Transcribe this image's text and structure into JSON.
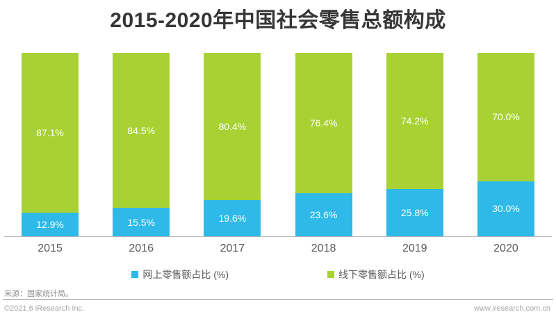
{
  "title": "2015-2020年中国社会零售总额构成",
  "chart_data": {
    "type": "bar",
    "stacked": true,
    "categories": [
      "2015",
      "2016",
      "2017",
      "2018",
      "2019",
      "2020"
    ],
    "series": [
      {
        "name": "网上零售额占比 (%)",
        "position": "bottom",
        "color": "#2eb9e8",
        "values": [
          12.9,
          15.5,
          19.6,
          23.6,
          25.8,
          30.0
        ],
        "labels": [
          "12.9%",
          "15.5%",
          "19.6%",
          "23.6%",
          "25.8%",
          "30.0%"
        ]
      },
      {
        "name": "线下零售额占比 (%)",
        "position": "top",
        "color": "#a8d234",
        "values": [
          87.1,
          84.5,
          80.4,
          76.4,
          74.2,
          70.0
        ],
        "labels": [
          "87.1%",
          "84.5%",
          "80.4%",
          "76.4%",
          "74.2%",
          "70.0%"
        ]
      }
    ],
    "title": "2015-2020年中国社会零售总额构成",
    "xlabel": "",
    "ylabel": "",
    "ylim": [
      0,
      100
    ],
    "grid": false,
    "legend_position": "bottom",
    "value_label_color": "#ffffff"
  },
  "legend": {
    "items": [
      {
        "label": "网上零售额占比 (%)",
        "color": "#2eb9e8"
      },
      {
        "label": "线下零售额占比 (%)",
        "color": "#a8d234"
      }
    ]
  },
  "footer": {
    "source": "来源：国家统计局。",
    "copyright": "©2021.6 iResearch Inc.",
    "website": "www.iresearch.com.cn"
  },
  "colors": {
    "online_bar": "#2eb9e8",
    "offline_bar": "#a8d234",
    "title_text": "#363636",
    "bar_value_text": "#ffffff",
    "axis_line": "#b5b5b5",
    "year_label_text": "#595959",
    "legend_text": "#595959",
    "source_text": "#8c8c8c",
    "footer_text": "#a6a6a6",
    "background": "#ffffff"
  }
}
